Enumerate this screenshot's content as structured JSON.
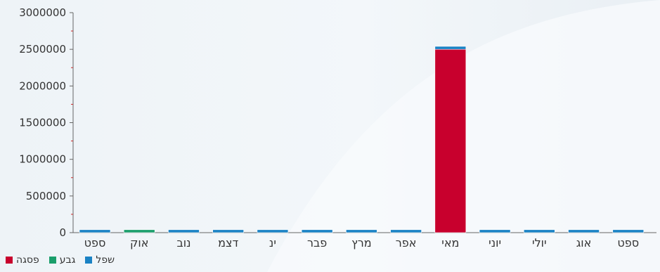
{
  "chart_data": {
    "type": "bar",
    "stacked": true,
    "categories": [
      "ספט",
      "אוק",
      "נוב",
      "דצמ",
      "ינ",
      "פבר",
      "מרץ",
      "אפר",
      "מאי",
      "יוני",
      "יולי",
      "אוג",
      "ספט"
    ],
    "series": [
      {
        "name": "פסגה",
        "color": "#c8002d",
        "values": [
          0,
          0,
          0,
          0,
          0,
          0,
          0,
          0,
          2500000,
          0,
          0,
          0,
          0
        ]
      },
      {
        "name": "גבע",
        "color": "#1a9e6b",
        "values": [
          0,
          40000,
          0,
          0,
          0,
          0,
          0,
          0,
          0,
          0,
          0,
          0,
          0
        ]
      },
      {
        "name": "שפל",
        "color": "#1a82c4",
        "values": [
          40000,
          0,
          40000,
          40000,
          40000,
          40000,
          40000,
          40000,
          40000,
          40000,
          40000,
          40000,
          40000
        ]
      }
    ],
    "yticks": [
      0,
      500000,
      1000000,
      1500000,
      2000000,
      2500000,
      3000000
    ],
    "ylim": [
      0,
      3000000
    ],
    "legend_position": "bottom-left",
    "grid": false
  }
}
